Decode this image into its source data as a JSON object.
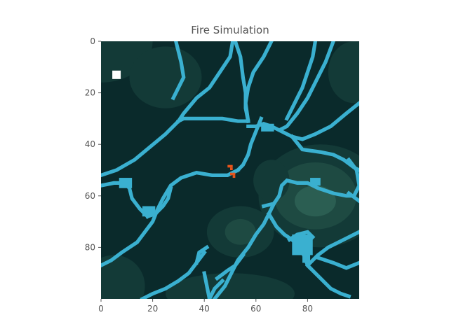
{
  "title": "Fire Simulation",
  "colors": {
    "background": "#0a2a2b",
    "terrain_mid": "#133a37",
    "terrain_high": "#1e4a42",
    "terrain_peak": "#2b5e52",
    "water": "#3ab0d0",
    "fire": "#e8541a",
    "agent": "#ffffff",
    "axis": "#555555"
  },
  "grid": {
    "cols": 100,
    "rows": 100
  },
  "x_ticks": [
    {
      "value": 0,
      "label": "0"
    },
    {
      "value": 20,
      "label": "20"
    },
    {
      "value": 40,
      "label": "40"
    },
    {
      "value": 60,
      "label": "60"
    },
    {
      "value": 80,
      "label": "80"
    }
  ],
  "y_ticks": [
    {
      "value": 0,
      "label": "0"
    },
    {
      "value": 20,
      "label": "20"
    },
    {
      "value": 40,
      "label": "40"
    },
    {
      "value": 60,
      "label": "60"
    },
    {
      "value": 80,
      "label": "80"
    }
  ],
  "agent": {
    "x": 6,
    "y": 13
  },
  "fire_cells": [
    [
      49,
      48
    ],
    [
      50,
      48
    ],
    [
      50,
      49
    ],
    [
      50,
      51
    ],
    [
      51,
      51
    ],
    [
      51,
      52
    ]
  ],
  "terrain_blobs": [
    {
      "cx": 0,
      "cy": 0,
      "rx": 20,
      "ry": 16,
      "level": "mid"
    },
    {
      "cx": 98,
      "cy": 12,
      "rx": 10,
      "ry": 12,
      "level": "mid"
    },
    {
      "cx": 85,
      "cy": 60,
      "rx": 24,
      "ry": 20,
      "level": "mid"
    },
    {
      "cx": 83,
      "cy": 60,
      "rx": 16,
      "ry": 13,
      "level": "high"
    },
    {
      "cx": 83,
      "cy": 62,
      "rx": 8,
      "ry": 6,
      "level": "peak"
    },
    {
      "cx": 54,
      "cy": 74,
      "rx": 13,
      "ry": 10,
      "level": "mid"
    },
    {
      "cx": 54,
      "cy": 74,
      "rx": 6,
      "ry": 5,
      "level": "high"
    },
    {
      "cx": 5,
      "cy": 95,
      "rx": 12,
      "ry": 12,
      "level": "mid"
    },
    {
      "cx": 50,
      "cy": 98,
      "rx": 25,
      "ry": 8,
      "level": "mid"
    },
    {
      "cx": 66,
      "cy": 54,
      "rx": 7,
      "ry": 8,
      "level": "mid"
    },
    {
      "cx": 25,
      "cy": 14,
      "rx": 14,
      "ry": 12,
      "level": "mid"
    }
  ],
  "rivers": [
    [
      [
        51,
        0
      ],
      [
        50,
        6
      ],
      [
        46,
        12
      ],
      [
        42,
        18
      ],
      [
        37,
        22
      ],
      [
        32,
        28
      ],
      [
        30,
        31
      ]
    ],
    [
      [
        52,
        0
      ],
      [
        54,
        6
      ],
      [
        55,
        14
      ],
      [
        56,
        20
      ],
      [
        56,
        26
      ],
      [
        57,
        31
      ]
    ],
    [
      [
        66,
        0
      ],
      [
        63,
        6
      ],
      [
        59,
        12
      ],
      [
        57,
        18
      ],
      [
        56,
        24
      ],
      [
        57,
        31
      ]
    ],
    [
      [
        29,
        0
      ],
      [
        31,
        8
      ],
      [
        32,
        14
      ],
      [
        30,
        18
      ],
      [
        28,
        22
      ]
    ],
    [
      [
        90,
        0
      ],
      [
        87,
        8
      ],
      [
        83,
        16
      ],
      [
        80,
        22
      ],
      [
        76,
        28
      ],
      [
        72,
        33
      ],
      [
        70,
        34
      ]
    ],
    [
      [
        83,
        0
      ],
      [
        82,
        6
      ],
      [
        80,
        12
      ],
      [
        78,
        18
      ],
      [
        75,
        24
      ],
      [
        72,
        30
      ]
    ],
    [
      [
        100,
        24
      ],
      [
        95,
        28
      ],
      [
        89,
        33
      ],
      [
        83,
        36
      ],
      [
        78,
        38
      ],
      [
        74,
        37
      ],
      [
        70,
        35
      ],
      [
        66,
        33
      ],
      [
        63,
        32
      ],
      [
        60,
        33
      ],
      [
        57,
        33
      ]
    ],
    [
      [
        30,
        31
      ],
      [
        32,
        30
      ],
      [
        40,
        30
      ],
      [
        47,
        30
      ],
      [
        53,
        31
      ],
      [
        57,
        31
      ]
    ],
    [
      [
        30,
        31
      ],
      [
        25,
        36
      ],
      [
        19,
        41
      ],
      [
        13,
        46
      ],
      [
        6,
        50
      ],
      [
        0,
        52
      ]
    ],
    [
      [
        74,
        37
      ],
      [
        78,
        42
      ],
      [
        85,
        43
      ],
      [
        90,
        44
      ],
      [
        94,
        46
      ],
      [
        98,
        49
      ],
      [
        100,
        50
      ]
    ],
    [
      [
        96,
        46
      ],
      [
        99,
        50
      ],
      [
        100,
        56
      ],
      [
        98,
        60
      ],
      [
        95,
        60
      ],
      [
        90,
        59
      ],
      [
        84,
        57
      ],
      [
        80,
        55
      ],
      [
        76,
        55
      ],
      [
        72,
        54
      ],
      [
        70,
        56
      ],
      [
        69,
        60
      ],
      [
        67,
        63
      ],
      [
        63,
        64
      ]
    ],
    [
      [
        100,
        62
      ],
      [
        96,
        59
      ]
    ],
    [
      [
        62,
        30
      ],
      [
        60,
        35
      ],
      [
        58,
        40
      ],
      [
        57,
        44
      ],
      [
        55,
        48
      ],
      [
        53,
        50
      ]
    ],
    [
      [
        53,
        50
      ],
      [
        49,
        52
      ],
      [
        43,
        52
      ],
      [
        37,
        51
      ],
      [
        31,
        53
      ],
      [
        27,
        56
      ],
      [
        24,
        61
      ],
      [
        22,
        65
      ],
      [
        20,
        70
      ],
      [
        17,
        74
      ],
      [
        14,
        78
      ],
      [
        8,
        82
      ],
      [
        4,
        85
      ],
      [
        0,
        87
      ]
    ],
    [
      [
        0,
        56
      ],
      [
        5,
        55
      ],
      [
        9,
        55
      ],
      [
        11,
        57
      ],
      [
        12,
        61
      ],
      [
        15,
        65
      ],
      [
        18,
        68
      ]
    ],
    [
      [
        18,
        68
      ],
      [
        21,
        67
      ],
      [
        24,
        64
      ],
      [
        26,
        61
      ],
      [
        27,
        57
      ]
    ],
    [
      [
        67,
        63
      ],
      [
        65,
        67
      ],
      [
        63,
        71
      ],
      [
        60,
        75
      ],
      [
        57,
        80
      ],
      [
        53,
        85
      ],
      [
        50,
        91
      ],
      [
        48,
        95
      ],
      [
        44,
        100
      ]
    ],
    [
      [
        65,
        67
      ],
      [
        68,
        72
      ],
      [
        71,
        75
      ],
      [
        74,
        77
      ],
      [
        77,
        80
      ],
      [
        79,
        84
      ],
      [
        80,
        87
      ],
      [
        81,
        88
      ]
    ],
    [
      [
        81,
        88
      ],
      [
        85,
        92
      ],
      [
        89,
        96
      ],
      [
        93,
        98
      ],
      [
        96,
        99
      ]
    ],
    [
      [
        80,
        87
      ],
      [
        84,
        83
      ],
      [
        88,
        80
      ],
      [
        92,
        78
      ],
      [
        96,
        76
      ],
      [
        100,
        74
      ]
    ],
    [
      [
        84,
        84
      ],
      [
        90,
        86
      ],
      [
        95,
        88
      ],
      [
        100,
        86
      ]
    ],
    [
      [
        40,
        90
      ],
      [
        41,
        95
      ],
      [
        42,
        100
      ]
    ],
    [
      [
        47,
        93
      ],
      [
        44,
        96
      ],
      [
        42,
        100
      ]
    ],
    [
      [
        40,
        82
      ],
      [
        37,
        86
      ],
      [
        34,
        90
      ],
      [
        30,
        93
      ],
      [
        25,
        96
      ],
      [
        20,
        98
      ],
      [
        16,
        100
      ]
    ],
    [
      [
        37,
        86
      ],
      [
        38,
        82
      ],
      [
        41,
        80
      ]
    ],
    [
      [
        55,
        83
      ],
      [
        52,
        87
      ],
      [
        49,
        89
      ],
      [
        45,
        92
      ]
    ],
    [
      [
        73,
        77
      ],
      [
        76,
        75
      ],
      [
        80,
        74
      ],
      [
        82,
        76
      ]
    ]
  ],
  "river_clusters": [
    {
      "x": 74,
      "y": 75,
      "w": 8,
      "h": 8
    },
    {
      "x": 62,
      "y": 32,
      "w": 5,
      "h": 3
    },
    {
      "x": 78,
      "y": 81,
      "w": 3,
      "h": 5
    },
    {
      "x": 7,
      "y": 53,
      "w": 5,
      "h": 4
    },
    {
      "x": 16,
      "y": 64,
      "w": 5,
      "h": 4
    },
    {
      "x": 81,
      "y": 53,
      "w": 4,
      "h": 3
    }
  ]
}
